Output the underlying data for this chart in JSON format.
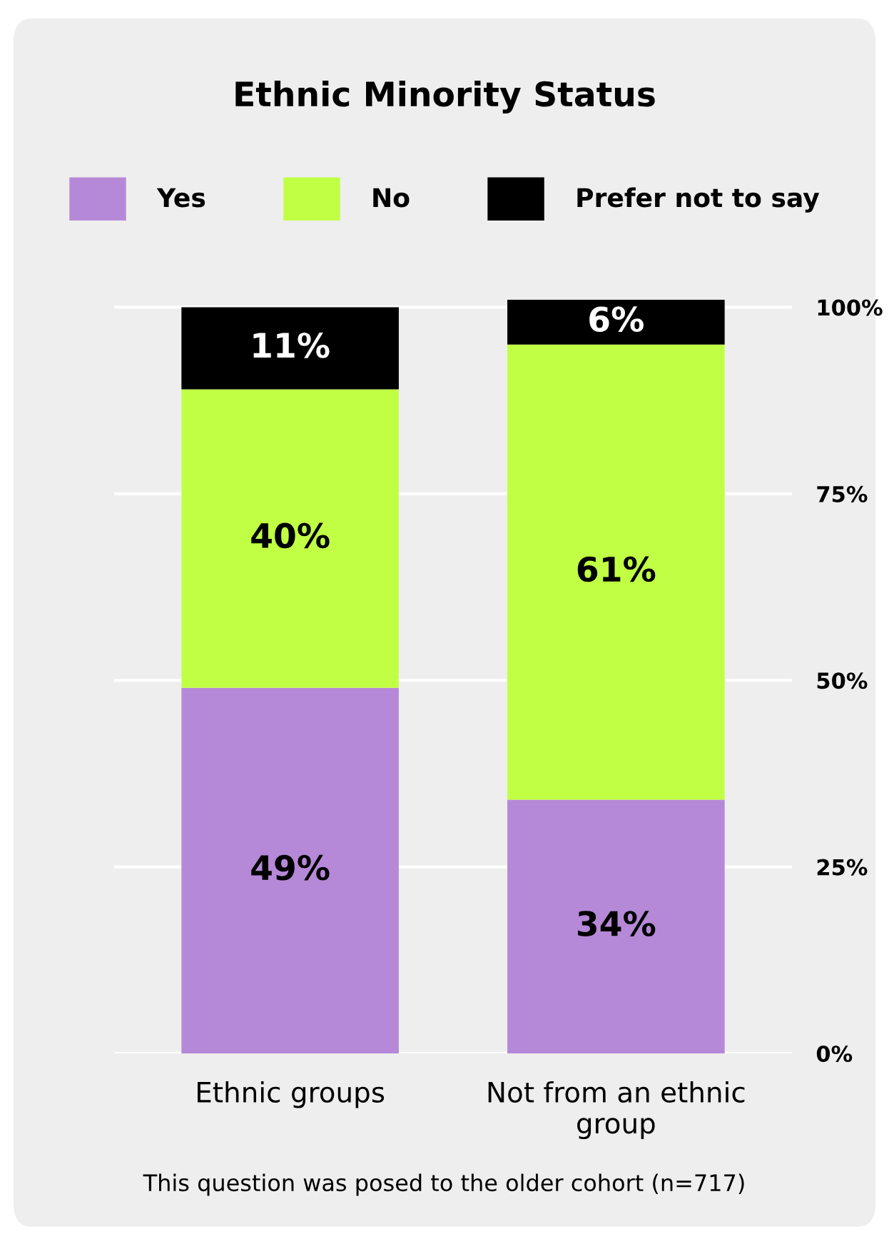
{
  "chart_data": {
    "type": "bar",
    "title": "Ethnic Minority Status",
    "stacked": true,
    "categories": [
      "Ethnic groups",
      "Not from an ethnic\ngroup"
    ],
    "series": [
      {
        "name": "Yes",
        "color": "#b689d8",
        "values": [
          49,
          34
        ],
        "value_labels": [
          "49%",
          "34%"
        ]
      },
      {
        "name": "No",
        "color": "#c1ff45",
        "values": [
          40,
          61
        ],
        "value_labels": [
          "40%",
          "61%"
        ]
      },
      {
        "name": "Prefer not to say",
        "color": "#000000",
        "values": [
          11,
          6
        ],
        "value_labels": [
          "11%",
          "6%"
        ]
      }
    ],
    "ylim": [
      0,
      101
    ],
    "yticks": [
      {
        "value": 0,
        "label": "0%"
      },
      {
        "value": 25,
        "label": "25%"
      },
      {
        "value": 50,
        "label": "50%"
      },
      {
        "value": 75,
        "label": "75%"
      },
      {
        "value": 100,
        "label": "100%"
      }
    ],
    "grid": "y",
    "legend": "top",
    "annotations": [
      "This question was posed to the older cohort (n=717)"
    ]
  }
}
